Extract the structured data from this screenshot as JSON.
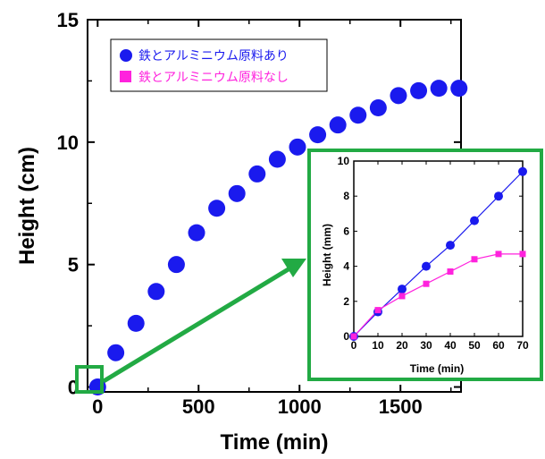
{
  "colors": {
    "iron_series": "#1a1aee",
    "no_iron_series": "#ff22dd",
    "highlight_green": "#22aa44",
    "axis": "#000000"
  },
  "chart_data": [
    {
      "type": "scatter",
      "xlabel": "Time (min)",
      "ylabel": "Height (cm)",
      "xlim": [
        -50,
        1800
      ],
      "ylim": [
        -0.2,
        15
      ],
      "xticks": [
        0,
        500,
        1000,
        1500
      ],
      "yticks": [
        0,
        5,
        10,
        15
      ],
      "legend_position": "top-left",
      "series": [
        {
          "name": "鉄とアルミニウム原料あり",
          "marker": "circle",
          "color": "#1a1aee",
          "x": [
            0,
            90,
            190,
            290,
            390,
            490,
            590,
            690,
            790,
            890,
            990,
            1090,
            1190,
            1290,
            1390,
            1490,
            1590,
            1690,
            1790
          ],
          "y": [
            0,
            1.4,
            2.6,
            3.9,
            5.0,
            6.3,
            7.3,
            7.9,
            8.7,
            9.3,
            9.8,
            10.3,
            10.7,
            11.1,
            11.4,
            11.9,
            12.1,
            12.2,
            12.2
          ]
        },
        {
          "name": "鉄とアルミニウム原料なし",
          "marker": "square",
          "color": "#ff22dd",
          "x": [],
          "y": []
        }
      ]
    },
    {
      "type": "line",
      "xlabel": "Time (min)",
      "ylabel": "Height (mm)",
      "xlim": [
        0,
        70
      ],
      "ylim": [
        0,
        10
      ],
      "xticks": [
        0,
        10,
        20,
        30,
        40,
        50,
        60,
        70
      ],
      "yticks": [
        0,
        2,
        4,
        6,
        8,
        10
      ],
      "series": [
        {
          "name": "鉄とアルミニウム原料あり",
          "marker": "circle",
          "color": "#1a1aee",
          "x": [
            0,
            10,
            20,
            30,
            40,
            50,
            60,
            70
          ],
          "y": [
            0,
            1.4,
            2.7,
            4.0,
            5.2,
            6.6,
            8.0,
            9.4
          ]
        },
        {
          "name": "鉄とアルミニウム原料なし",
          "marker": "square",
          "color": "#ff22dd",
          "x": [
            0,
            10,
            20,
            30,
            40,
            50,
            60,
            70
          ],
          "y": [
            0,
            1.5,
            2.3,
            3.0,
            3.7,
            4.4,
            4.7,
            4.7
          ]
        }
      ]
    }
  ]
}
